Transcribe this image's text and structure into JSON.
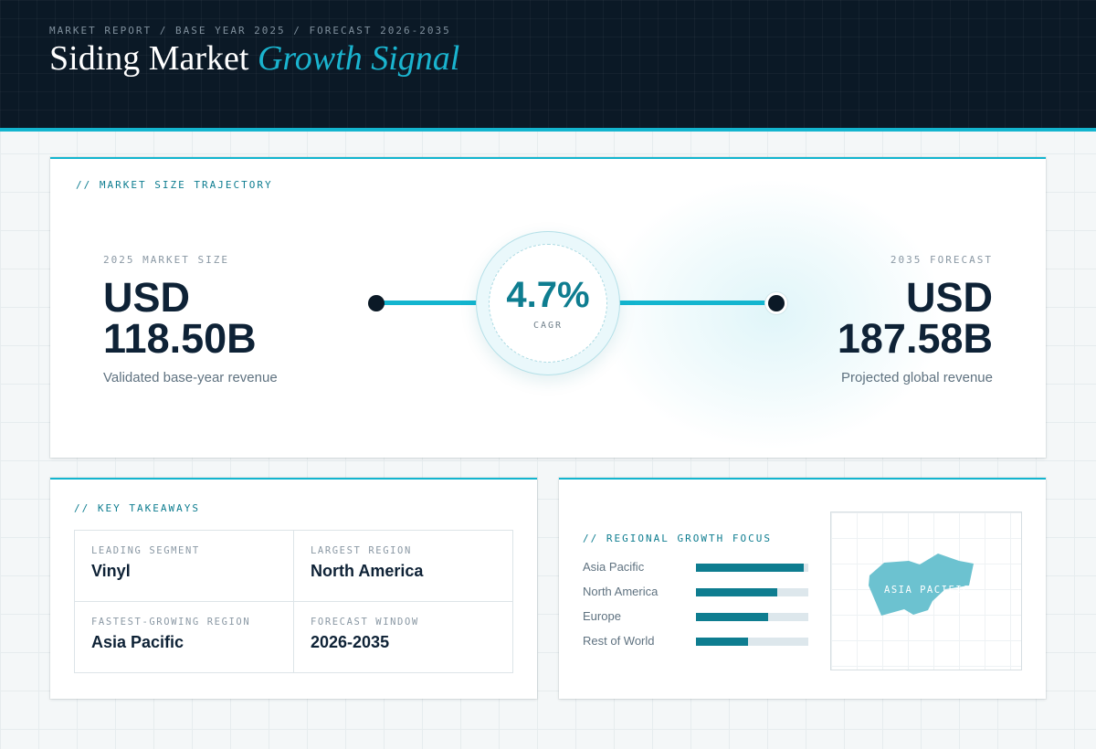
{
  "header": {
    "eyebrow": "MARKET REPORT / BASE YEAR 2025 / FORECAST 2026-2035",
    "title_main": "Siding Market",
    "title_accent": "Growth Signal"
  },
  "trajectory": {
    "label": "// MARKET SIZE TRAJECTORY",
    "base": {
      "eyebrow": "2025 MARKET SIZE",
      "currency": "USD",
      "value": "118.50B",
      "caption": "Validated base-year revenue"
    },
    "cagr": {
      "value": "4.7%",
      "label": "CAGR"
    },
    "forecast": {
      "eyebrow": "2035 FORECAST",
      "currency": "USD",
      "value": "187.58B",
      "caption": "Projected global revenue"
    }
  },
  "takeaways": {
    "label": "// KEY TAKEAWAYS",
    "items": [
      {
        "eyebrow": "LEADING SEGMENT",
        "value": "Vinyl"
      },
      {
        "eyebrow": "LARGEST REGION",
        "value": "North America"
      },
      {
        "eyebrow": "FASTEST-GROWING REGION",
        "value": "Asia Pacific"
      },
      {
        "eyebrow": "FORECAST WINDOW",
        "value": "2026-2035"
      }
    ]
  },
  "regional": {
    "label": "// REGIONAL GROWTH FOCUS",
    "regions": [
      {
        "name": "Asia Pacific",
        "bar_fraction": 0.96
      },
      {
        "name": "North America",
        "bar_fraction": 0.72
      },
      {
        "name": "Europe",
        "bar_fraction": 0.64
      },
      {
        "name": "Rest of World",
        "bar_fraction": 0.46
      }
    ],
    "map_label": "ASIA PACIFIC",
    "colors": {
      "bar": "#0e7d90",
      "track": "#dde7ec",
      "map_shape": "#6cc2d0"
    }
  },
  "colors": {
    "accent": "#13b5cf",
    "navy": "#0b1926",
    "teal": "#0e7d90"
  }
}
